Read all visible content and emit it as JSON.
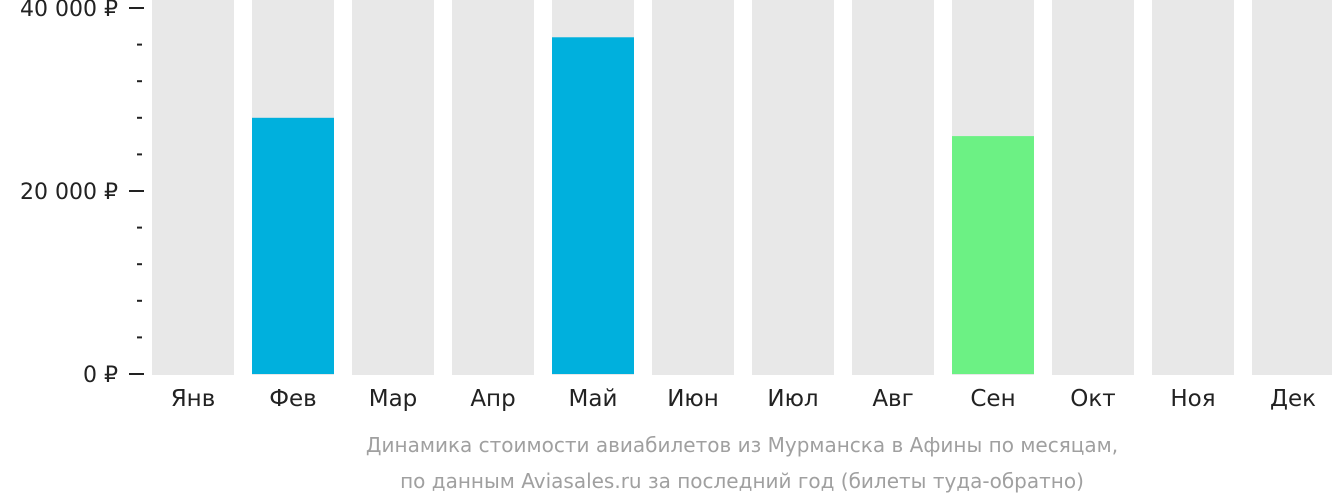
{
  "chart_data": {
    "type": "bar",
    "categories": [
      "Янв",
      "Фев",
      "Мар",
      "Апр",
      "Май",
      "Июн",
      "Июл",
      "Авг",
      "Сен",
      "Окт",
      "Ноя",
      "Дек"
    ],
    "values": [
      null,
      28000,
      null,
      null,
      36800,
      null,
      null,
      null,
      26000,
      null,
      null,
      null
    ],
    "ylim": [
      0,
      40000
    ],
    "y_ticks": [
      {
        "value": 0,
        "label": "0 ₽"
      },
      {
        "value": 20000,
        "label": "20 000 ₽"
      },
      {
        "value": 40000,
        "label": "40 000 ₽"
      }
    ],
    "minor_tick_step": 4000,
    "highlight_index": 8,
    "grid": false,
    "legend": "none"
  },
  "caption": {
    "line1": "Динамика стоимости авиабилетов из Мурманска в Афины по месяцам,",
    "line2": "по данным Aviasales.ru за последний год (билеты туда-обратно)"
  },
  "colors": {
    "background_bar": "#e8e8e8",
    "bar": "#00b0dd",
    "bar_highlight": "#6cf184",
    "axis": "#222222",
    "caption": "#a0a0a0"
  }
}
